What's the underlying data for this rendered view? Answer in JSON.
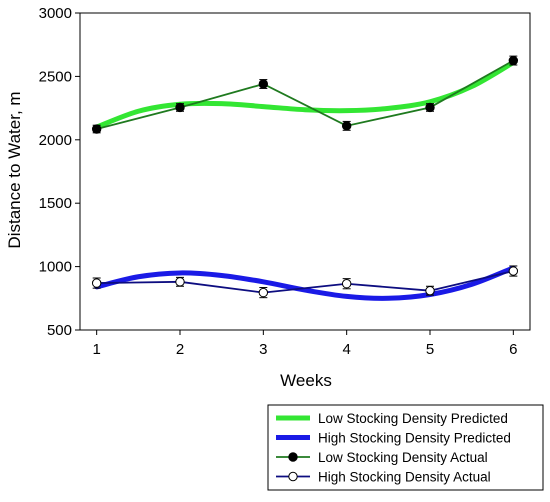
{
  "chart_data": {
    "type": "line",
    "xlabel": "Weeks",
    "ylabel": "Distance to Water, m",
    "xlim": [
      0.8,
      6.2
    ],
    "ylim": [
      500,
      3000
    ],
    "x_ticks": [
      1,
      2,
      3,
      4,
      5,
      6
    ],
    "y_ticks": [
      500,
      1000,
      1500,
      2000,
      2500,
      3000
    ],
    "legend_position": "bottom-right",
    "series": [
      {
        "name": "Low Stocking Density Predicted",
        "style": "smooth",
        "color": "#33e633",
        "x": [
          1,
          1.5,
          2,
          2.5,
          3,
          3.5,
          4,
          4.5,
          5,
          5.5,
          6
        ],
        "y": [
          2100,
          2225,
          2280,
          2285,
          2262,
          2237,
          2230,
          2248,
          2300,
          2420,
          2610
        ]
      },
      {
        "name": "High Stocking Density Predicted",
        "style": "smooth",
        "color": "#1a1ae6",
        "x": [
          1,
          1.5,
          2,
          2.5,
          3,
          3.5,
          4,
          4.5,
          5,
          5.5,
          6
        ],
        "y": [
          840,
          920,
          950,
          930,
          880,
          815,
          765,
          750,
          780,
          860,
          990
        ]
      },
      {
        "name": "Low Stocking Density Actual",
        "style": "markers",
        "marker": "filled",
        "color": "#1f7a1f",
        "x": [
          1,
          2,
          3,
          4,
          5,
          6
        ],
        "y": [
          2085,
          2255,
          2440,
          2110,
          2255,
          2625
        ],
        "err": [
          30,
          30,
          35,
          35,
          30,
          35
        ]
      },
      {
        "name": "High Stocking Density Actual",
        "style": "markers",
        "marker": "open",
        "color": "#0d0d80",
        "x": [
          1,
          2,
          3,
          4,
          5,
          6
        ],
        "y": [
          870,
          880,
          795,
          865,
          810,
          965
        ],
        "err": [
          40,
          35,
          40,
          40,
          35,
          40
        ]
      }
    ]
  }
}
